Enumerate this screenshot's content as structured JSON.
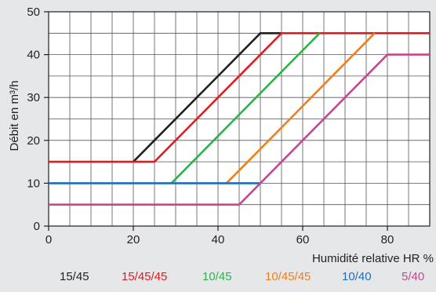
{
  "chart_data": {
    "type": "line",
    "xlabel": "Humidité relative HR %",
    "ylabel": "Débit en m³/h",
    "xlim": [
      0,
      90
    ],
    "ylim": [
      0,
      50
    ],
    "x_ticks": [
      0,
      20,
      40,
      60,
      80
    ],
    "y_ticks": [
      0,
      10,
      20,
      30,
      40,
      50
    ],
    "grid": true,
    "legend_position": "bottom",
    "series": [
      {
        "name": "15/45",
        "color": "#231f20",
        "x": [
          20,
          50,
          55
        ],
        "y": [
          15,
          45,
          45
        ]
      },
      {
        "name": "15/45/45",
        "color": "#e21b23",
        "x": [
          0,
          25,
          55,
          90
        ],
        "y": [
          15,
          15,
          45,
          45
        ]
      },
      {
        "name": "10/45",
        "color": "#2bb34a",
        "x": [
          29,
          64
        ],
        "y": [
          10,
          45
        ]
      },
      {
        "name": "10/45/45",
        "color": "#f07f1a",
        "x": [
          42,
          77
        ],
        "y": [
          10,
          45
        ]
      },
      {
        "name": "10/40",
        "color": "#1d6fb8",
        "x": [
          0,
          50
        ],
        "y": [
          10,
          10
        ]
      },
      {
        "name": "5/40",
        "color": "#c6478e",
        "x": [
          0,
          45,
          80,
          90
        ],
        "y": [
          5,
          5,
          40,
          40
        ]
      }
    ]
  }
}
